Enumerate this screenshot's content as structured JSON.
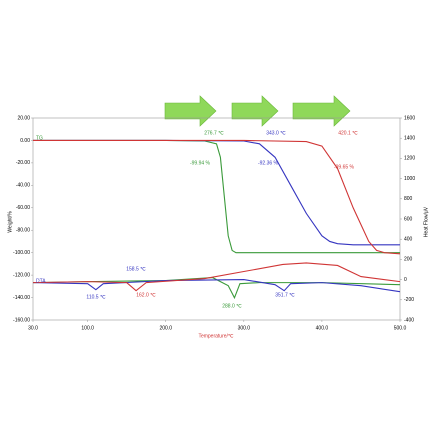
{
  "chart_data": {
    "type": "line",
    "xlabel": "Temperature/℃",
    "ylabel": "Weight/%",
    "y2label": "Heat Flow/μV",
    "xlim": [
      30,
      500
    ],
    "xticks": [
      {
        "value": 30,
        "label": "30.0"
      },
      {
        "value": 100,
        "label": "100.0"
      },
      {
        "value": 200,
        "label": "200.0"
      },
      {
        "value": 300,
        "label": "300.0"
      },
      {
        "value": 400,
        "label": "400.0"
      },
      {
        "value": 500,
        "label": "500.0"
      }
    ],
    "ylim": [
      -160,
      20
    ],
    "yticks": [
      {
        "value": 20,
        "label": "20.00"
      },
      {
        "value": 0,
        "label": "0.00"
      },
      {
        "value": -20,
        "label": "-20.00"
      },
      {
        "value": -40,
        "label": "-40.00"
      },
      {
        "value": -60,
        "label": "-60.00"
      },
      {
        "value": -80,
        "label": "-80.00"
      },
      {
        "value": -100,
        "label": "-100.00"
      },
      {
        "value": -120,
        "label": "-120.00"
      },
      {
        "value": -140,
        "label": "-140.00"
      },
      {
        "value": -160,
        "label": "-160.00"
      }
    ],
    "y2lim": [
      -400,
      1600
    ],
    "y2ticks": [
      1600,
      1400,
      1200,
      1000,
      800,
      600,
      400,
      200,
      0,
      -200,
      -400
    ],
    "curve_labels": [
      "TG",
      "DTA"
    ],
    "series": [
      {
        "color": "#3a9a3a",
        "x": [
          30,
          100,
          200,
          250,
          265,
          270,
          275,
          280,
          285,
          290,
          300,
          400,
          500
        ],
        "values": [
          0,
          0,
          0,
          -0.5,
          -3,
          -15,
          -50,
          -85,
          -98,
          -100,
          -100,
          -100,
          -100
        ]
      },
      {
        "color": "#3535c0",
        "x": [
          30,
          100,
          200,
          300,
          320,
          340,
          360,
          380,
          400,
          410,
          420,
          440,
          500
        ],
        "values": [
          0,
          0,
          0,
          -0.5,
          -3,
          -15,
          -40,
          -65,
          -85,
          -90,
          -92,
          -93,
          -93
        ]
      },
      {
        "color": "#d03535",
        "x": [
          30,
          200,
          300,
          380,
          400,
          420,
          440,
          460,
          470,
          480,
          500
        ],
        "values": [
          0,
          0,
          0,
          -1,
          -5,
          -25,
          -60,
          -90,
          -98,
          -100,
          -101
        ]
      },
      {
        "color": "#3a9a3a",
        "axis": "y2",
        "x": [
          30,
          100,
          200,
          260,
          280,
          288,
          295,
          320,
          400,
          500
        ],
        "values": [
          -30,
          -20,
          -10,
          20,
          -60,
          -180,
          -40,
          -30,
          -30,
          -50
        ]
      },
      {
        "color": "#3535c0",
        "axis": "y2",
        "x": [
          30,
          100,
          110.5,
          120,
          200,
          300,
          340,
          351.7,
          360,
          400,
          450,
          500
        ],
        "values": [
          -30,
          -40,
          -100,
          -40,
          -10,
          0,
          -50,
          -110,
          -40,
          -30,
          -60,
          -120
        ]
      },
      {
        "color": "#d03535",
        "axis": "y2",
        "x": [
          30,
          100,
          150,
          162,
          175,
          250,
          300,
          350,
          380,
          420,
          450,
          500
        ],
        "values": [
          -30,
          -20,
          -30,
          -110,
          -30,
          10,
          80,
          150,
          165,
          140,
          30,
          -20
        ]
      }
    ],
    "annotations": [
      {
        "text": "276.7 ℃",
        "color": "#3a9a3a"
      },
      {
        "text": "343.0 ℃",
        "color": "#3535c0"
      },
      {
        "text": "420.1 ℃",
        "color": "#d03535"
      },
      {
        "text": "-99.94 %",
        "color": "#3a9a3a"
      },
      {
        "text": "-92.36 %",
        "color": "#3535c0"
      },
      {
        "text": "-99.65 %",
        "color": "#d03535"
      },
      {
        "text": "158.5 ℃",
        "color": "#3535c0"
      },
      {
        "text": "110.5 ℃",
        "color": "#3535c0"
      },
      {
        "text": "162.0 ℃",
        "color": "#d03535"
      },
      {
        "text": "288.0 ℃",
        "color": "#3a9a3a"
      },
      {
        "text": "351.7 ℃",
        "color": "#3535c0"
      }
    ]
  }
}
